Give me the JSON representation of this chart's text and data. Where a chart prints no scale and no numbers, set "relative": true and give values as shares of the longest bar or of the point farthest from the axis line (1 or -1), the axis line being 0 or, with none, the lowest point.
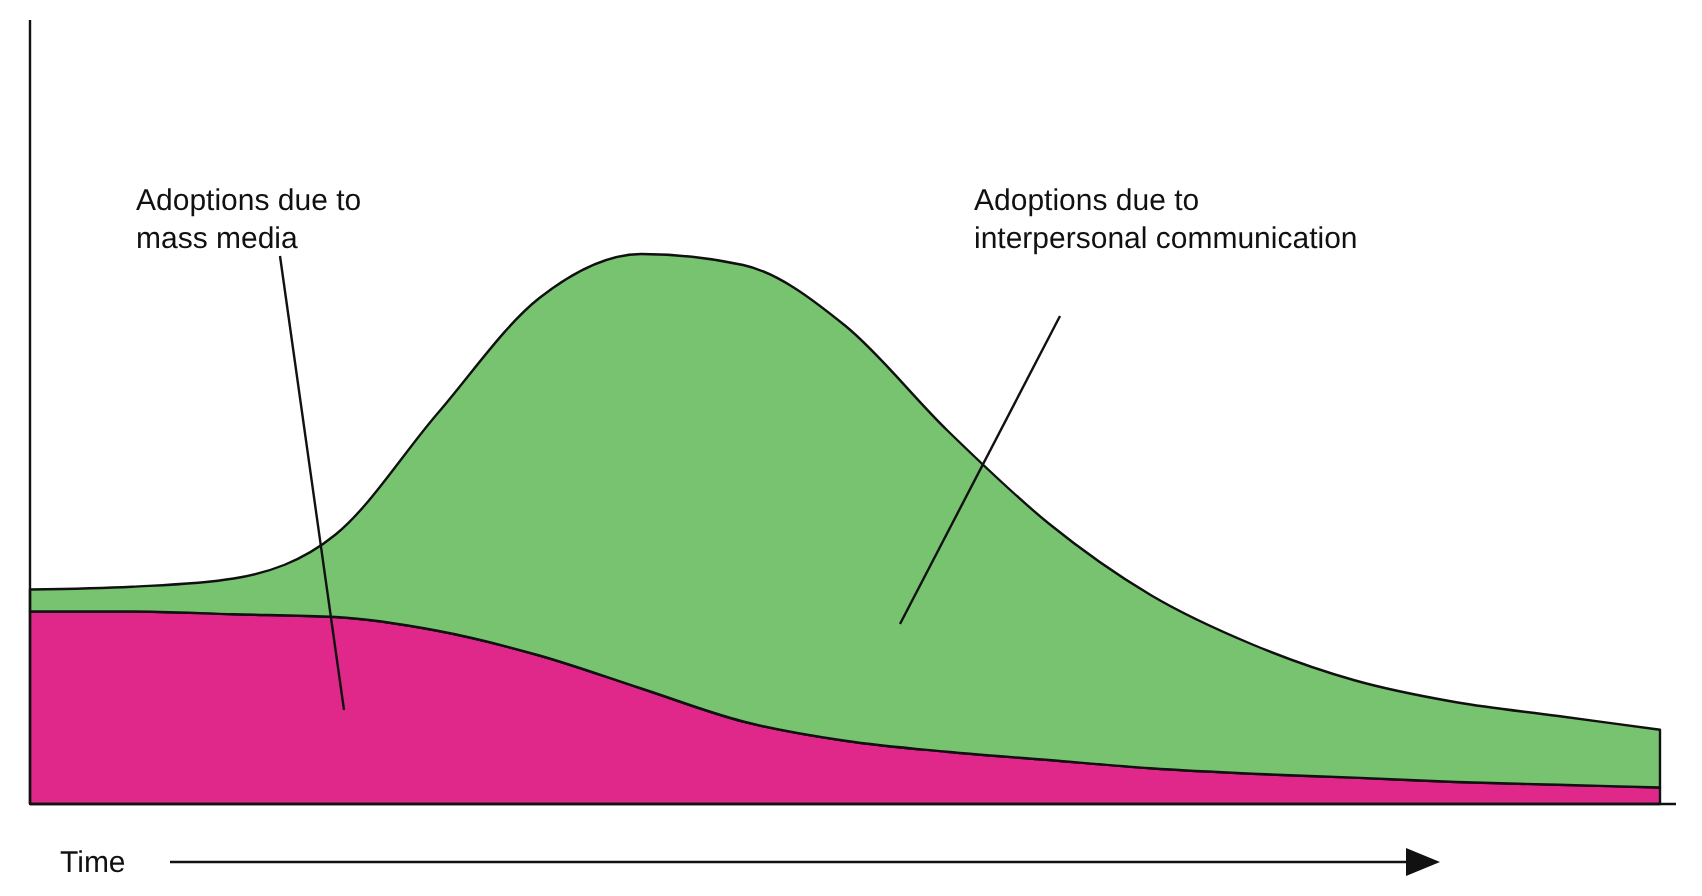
{
  "chart_data": {
    "type": "area",
    "stacked": true,
    "relative": true,
    "xlabel": "Time",
    "categories": [
      null,
      null,
      null,
      null,
      null,
      null,
      null,
      null,
      null,
      null,
      null,
      null,
      null,
      null,
      null,
      null,
      null
    ],
    "series": [
      {
        "color": "#e0288a",
        "values": [
          0.35,
          0.35,
          0.345,
          0.34,
          0.315,
          0.27,
          0.21,
          0.15,
          0.115,
          0.095,
          0.08,
          0.065,
          0.055,
          0.048,
          0.04,
          0.035,
          0.03
        ]
      },
      {
        "color": "#77c36f",
        "values": [
          0.04,
          0.045,
          0.065,
          0.15,
          0.395,
          0.65,
          0.79,
          0.83,
          0.755,
          0.585,
          0.43,
          0.315,
          0.235,
          0.177,
          0.145,
          0.125,
          0.105
        ]
      }
    ],
    "annotations": [
      "Adoptions due to\nmass media",
      "Adoptions due to\ninterpersonal communication"
    ]
  }
}
